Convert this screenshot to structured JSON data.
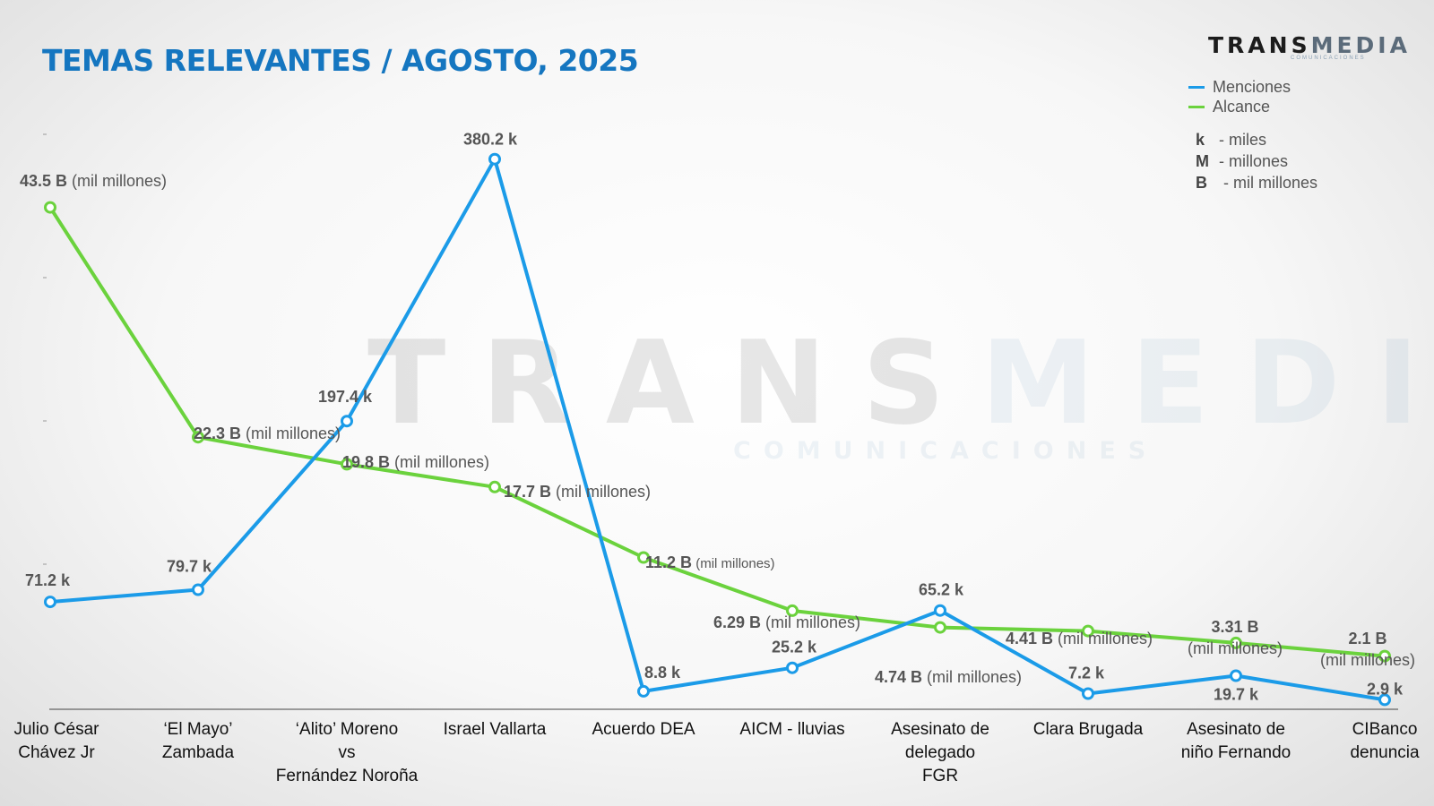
{
  "title": "TEMAS RELEVANTES / AGOSTO, 2025",
  "logo": {
    "part1": "TRANS",
    "part2": "MEDIA",
    "sub": "COMUNICACIONES"
  },
  "watermark": {
    "part1": "TRANS",
    "part2": "MEDIA",
    "sub": "COMUNICACIONES"
  },
  "units": [
    {
      "key": "k",
      "label": "- miles"
    },
    {
      "key": "M",
      "label": "- millones"
    },
    {
      "key": "B",
      "label": " - mil millones"
    }
  ],
  "colors": {
    "menciones": "#1b9be8",
    "alcance": "#6bd23d",
    "title": "#1576c0"
  },
  "chart_data": {
    "type": "line",
    "title": "TEMAS RELEVANTES / AGOSTO, 2025",
    "legend_position": "top-right",
    "categories": [
      [
        "Julio César",
        "Chávez Jr"
      ],
      [
        "‘El Mayo’",
        "Zambada"
      ],
      [
        "‘Alito’ Moreno",
        "vs",
        "Fernández Noroña"
      ],
      [
        "Israel Vallarta"
      ],
      [
        "Acuerdo DEA"
      ],
      [
        "AICM - lluvias"
      ],
      [
        "Asesinato de",
        "delegado",
        "FGR"
      ],
      [
        "Clara Brugada"
      ],
      [
        "Asesinato de",
        "niño Fernando"
      ],
      [
        "CIBanco",
        "denuncia"
      ]
    ],
    "series": [
      {
        "name": "Menciones",
        "unit": "k",
        "values": [
          71.2,
          79.7,
          197.4,
          380.2,
          8.8,
          25.2,
          65.2,
          7.2,
          19.7,
          2.9
        ],
        "labels": [
          "71.2 k",
          "79.7 k",
          "197.4 k",
          "380.2 k",
          "8.8 k",
          "25.2 k",
          "65.2 k",
          "7.2 k",
          "19.7 k",
          "2.9 k"
        ]
      },
      {
        "name": "Alcance",
        "unit": "B",
        "values": [
          43.5,
          22.3,
          19.8,
          17.7,
          11.2,
          6.29,
          4.74,
          4.41,
          3.31,
          2.1
        ],
        "labels": [
          "43.5 B",
          "22.3 B",
          "19.8 B",
          "17.7 B",
          "11.2 B",
          "6.29 B",
          "4.74 B",
          "4.41 B",
          "3.31 B",
          "2.1 B"
        ],
        "suffix": "(mil millones)"
      }
    ]
  }
}
